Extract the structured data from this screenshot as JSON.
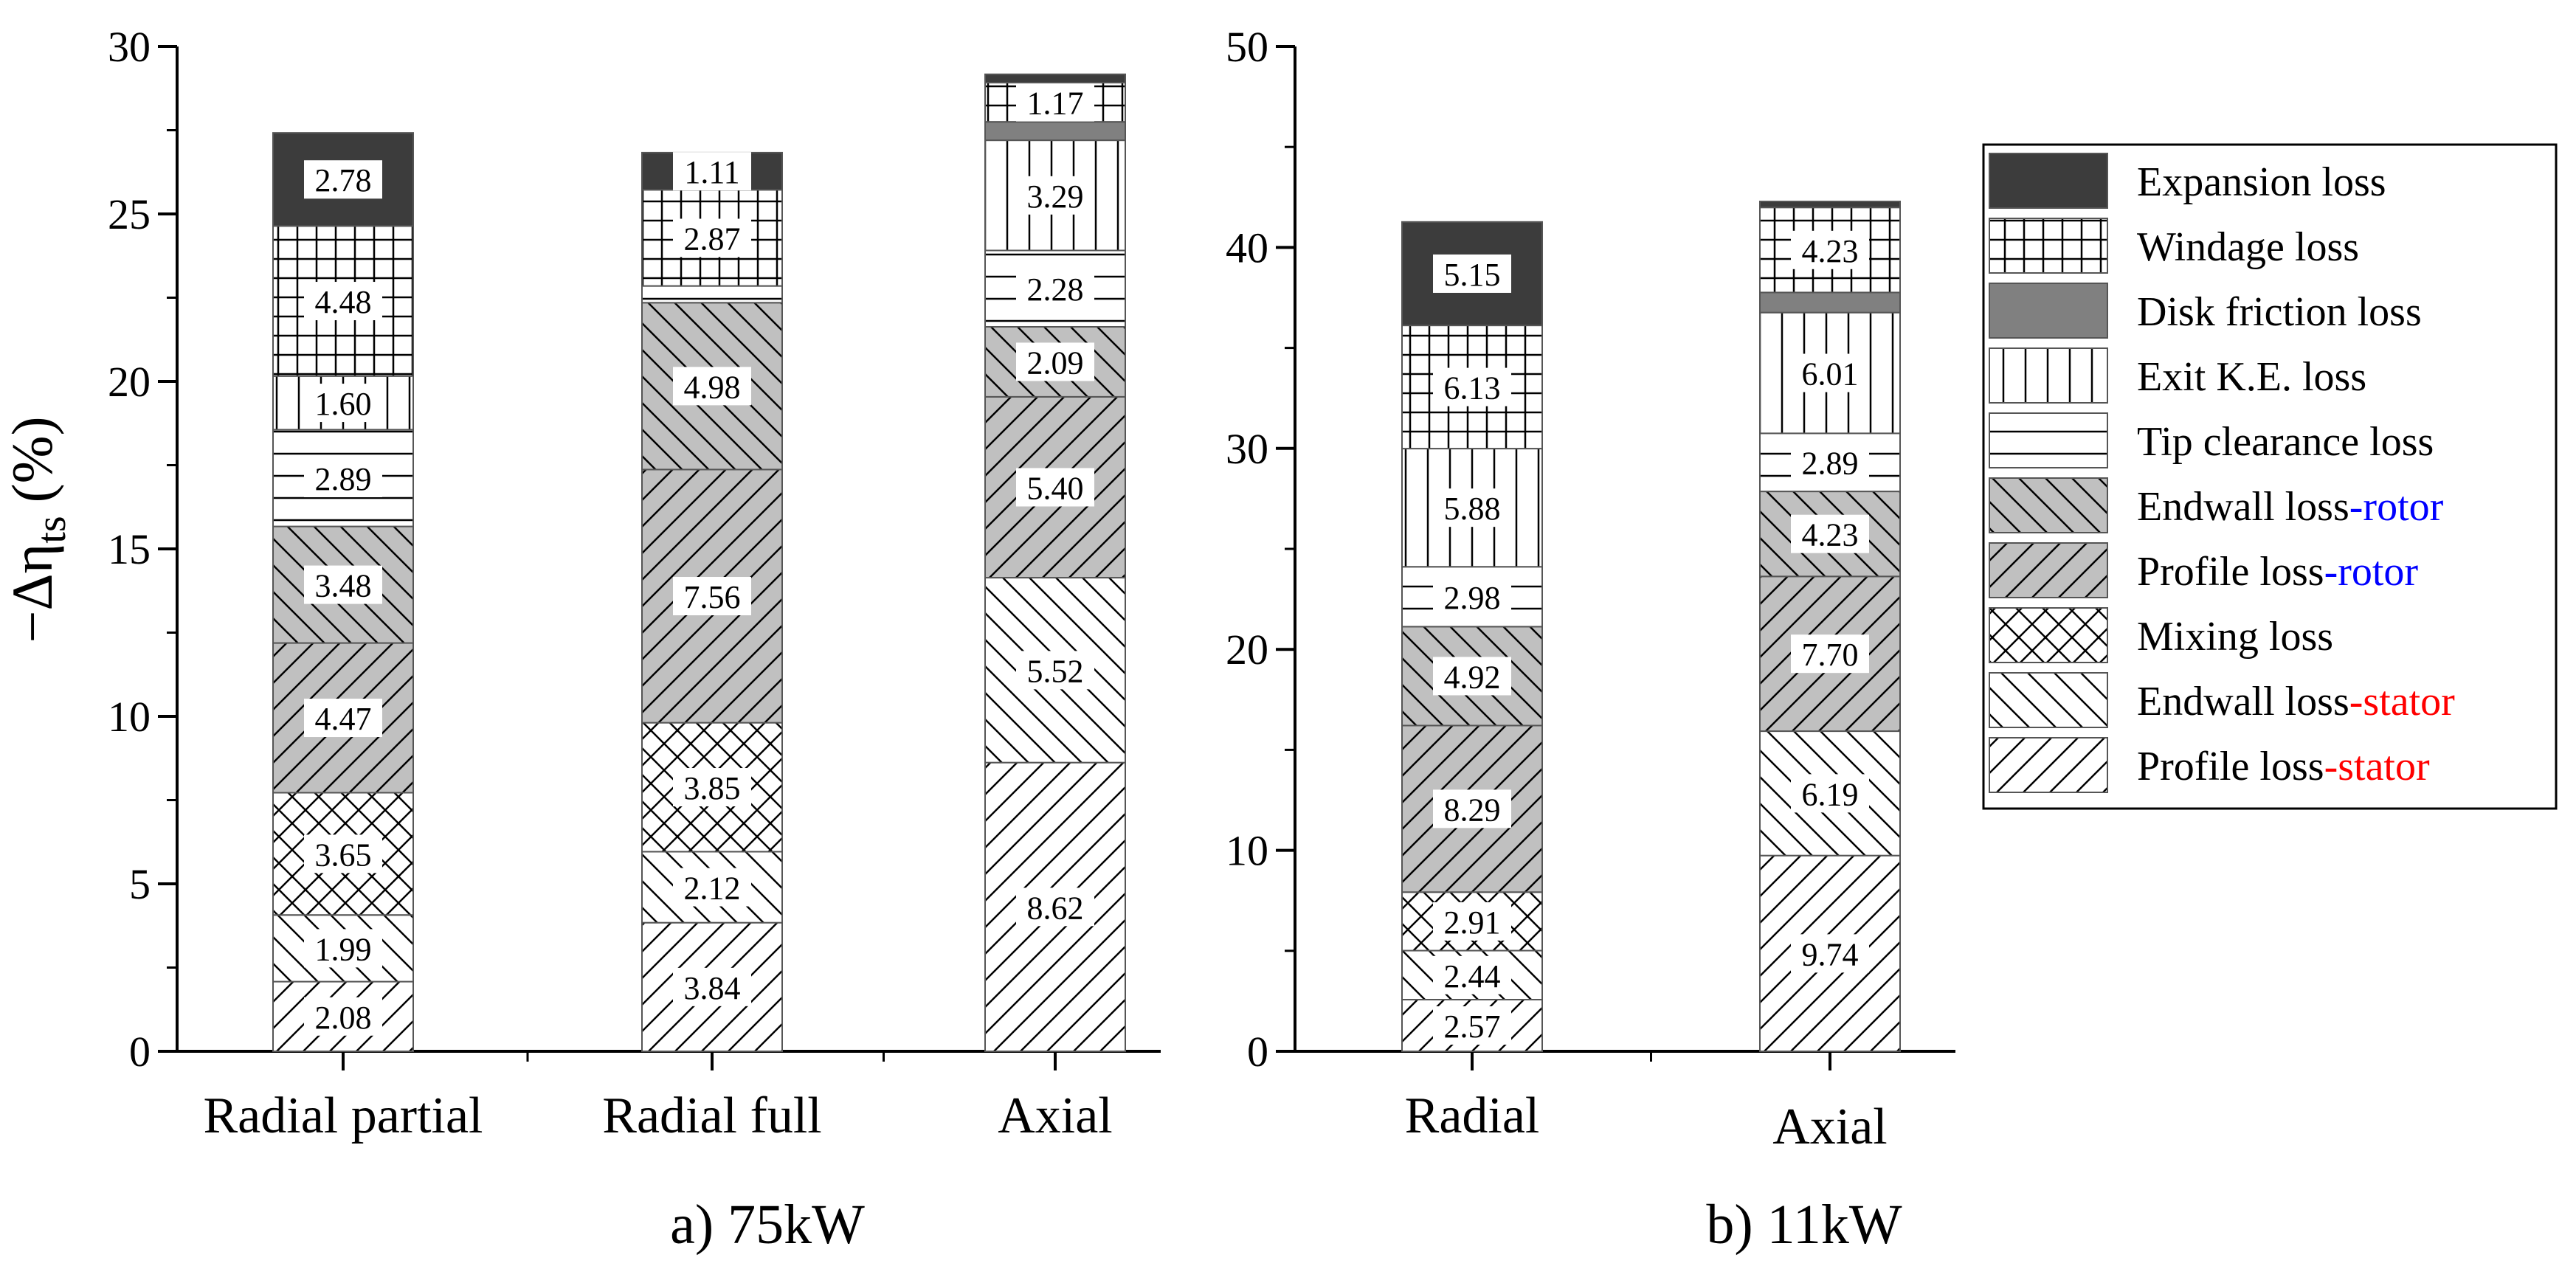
{
  "ylabel_main": "−Δη",
  "ylabel_sub": "ts",
  "ylabel_unit": "(%)",
  "chart_data": {
    "type": "bar",
    "stacked": true,
    "legend_position": "right",
    "components": [
      {
        "name": "Profile loss",
        "suffix": "-stator",
        "suffix_color": "#ff0000",
        "pattern": "pat-diag-fwd",
        "fill": "#ffffff"
      },
      {
        "name": "Endwall loss",
        "suffix": "-stator",
        "suffix_color": "#ff0000",
        "pattern": "pat-diag-back",
        "fill": "#ffffff"
      },
      {
        "name": "Mixing loss",
        "suffix": "",
        "suffix_color": "",
        "pattern": "pat-cross",
        "fill": "#ffffff"
      },
      {
        "name": "Profile loss",
        "suffix": "-rotor",
        "suffix_color": "#0000ff",
        "pattern": "pat-diag-fwd",
        "fill": "#c0c0c0"
      },
      {
        "name": "Endwall loss",
        "suffix": "-rotor",
        "suffix_color": "#0000ff",
        "pattern": "pat-diag-back",
        "fill": "#c0c0c0"
      },
      {
        "name": "Tip clearance loss",
        "suffix": "",
        "suffix_color": "",
        "pattern": "pat-horiz",
        "fill": "#ffffff"
      },
      {
        "name": "Exit K.E. loss",
        "suffix": "",
        "suffix_color": "",
        "pattern": "pat-vert",
        "fill": "#ffffff"
      },
      {
        "name": "Disk friction loss",
        "suffix": "",
        "suffix_color": "",
        "pattern": null,
        "fill": "#808080"
      },
      {
        "name": "Windage loss",
        "suffix": "",
        "suffix_color": "",
        "pattern": "pat-grid",
        "fill": "#ffffff"
      },
      {
        "name": "Expansion loss",
        "suffix": "",
        "suffix_color": "",
        "pattern": null,
        "fill": "#3c3c3c"
      }
    ],
    "panels": [
      {
        "title": "a) 75kW",
        "ylim": [
          0,
          30
        ],
        "yticks": [
          0,
          5,
          10,
          15,
          20,
          25,
          30
        ],
        "categories": [
          "Radial partial",
          "Radial full",
          "Axial"
        ],
        "values": [
          [
            2.08,
            1.99,
            3.65,
            4.47,
            3.48,
            2.89,
            1.6,
            0,
            4.48,
            2.78
          ],
          [
            3.84,
            2.12,
            3.85,
            7.56,
            4.98,
            0.5,
            0,
            0,
            2.87,
            1.11
          ],
          [
            8.62,
            5.52,
            0,
            5.4,
            2.09,
            2.28,
            3.29,
            0.55,
            1.17,
            0.25
          ]
        ],
        "labels": [
          [
            "2.08",
            "1.99",
            "3.65",
            "4.47",
            "3.48",
            "2.89",
            "1.60",
            "",
            "4.48",
            "2.78"
          ],
          [
            "3.84",
            "2.12",
            "3.85",
            "7.56",
            "4.98",
            "",
            "",
            "",
            "2.87",
            "1.11"
          ],
          [
            "8.62",
            "5.52",
            "",
            "5.40",
            "2.09",
            "2.28",
            "3.29",
            "",
            "1.17",
            ""
          ]
        ]
      },
      {
        "title": "b) 11kW",
        "ylim": [
          0,
          50
        ],
        "yticks": [
          0,
          10,
          20,
          30,
          40,
          50
        ],
        "categories": [
          "Radial",
          "Axial"
        ],
        "values": [
          [
            2.57,
            2.44,
            2.91,
            8.29,
            4.92,
            2.98,
            5.88,
            0,
            6.13,
            5.15
          ],
          [
            9.74,
            6.19,
            0,
            7.7,
            4.23,
            2.89,
            6.01,
            1.0,
            4.23,
            0.3
          ]
        ],
        "labels": [
          [
            "2.57",
            "2.44",
            "2.91",
            "8.29",
            "4.92",
            "2.98",
            "5.88",
            "",
            "6.13",
            "5.15"
          ],
          [
            "9.74",
            "6.19",
            "",
            "7.70",
            "4.23",
            "2.89",
            "6.01",
            "",
            "4.23",
            ""
          ]
        ]
      }
    ]
  }
}
